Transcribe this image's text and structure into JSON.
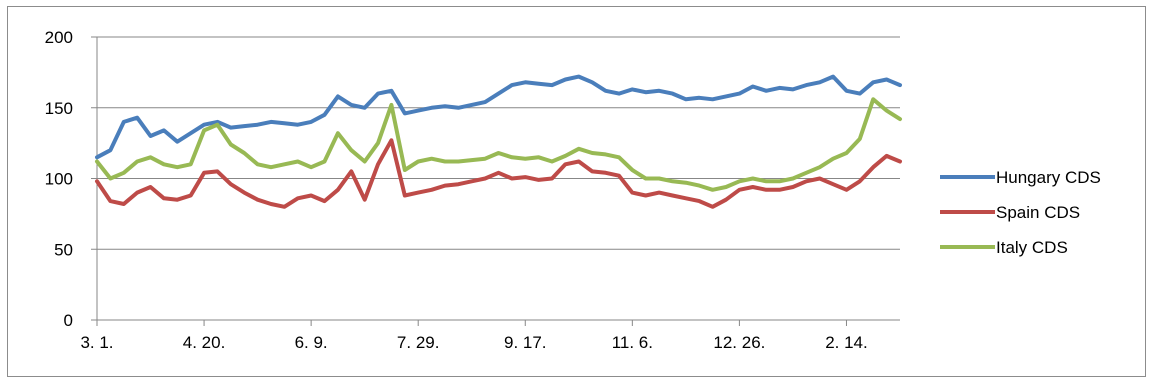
{
  "chart_data": {
    "type": "line",
    "title": "",
    "xlabel": "",
    "ylabel": "",
    "ylim": [
      0,
      200
    ],
    "yticks": [
      0,
      50,
      100,
      150,
      200
    ],
    "ytick_labels": [
      "0",
      "50",
      "100",
      "150",
      "200"
    ],
    "xtick_labels": [
      "3. 1.",
      "4. 20.",
      "6. 9.",
      "7. 29.",
      "9. 17.",
      "11. 6.",
      "12. 26.",
      "2. 14."
    ],
    "grid": "horizontal",
    "legend_position": "right",
    "x": [
      0,
      0.125,
      0.25,
      0.375,
      0.5,
      0.625,
      0.75,
      0.875,
      1,
      1.125,
      1.25,
      1.375,
      1.5,
      1.625,
      1.75,
      1.875,
      2,
      2.125,
      2.25,
      2.375,
      2.5,
      2.625,
      2.75,
      2.875,
      3,
      3.125,
      3.25,
      3.375,
      3.5,
      3.625,
      3.75,
      3.875,
      4,
      4.125,
      4.25,
      4.375,
      4.5,
      4.625,
      4.75,
      4.875,
      5,
      5.125,
      5.25,
      5.375,
      5.5,
      5.625,
      5.75,
      5.875,
      6,
      6.125,
      6.25,
      6.375,
      6.5,
      6.625,
      6.75,
      6.875,
      7,
      7.125,
      7.25,
      7.375,
      7.5
    ],
    "series": [
      {
        "name": "Hungary CDS",
        "color": "#4a7ebb",
        "values": [
          115,
          120,
          140,
          143,
          130,
          134,
          126,
          132,
          138,
          140,
          136,
          137,
          138,
          140,
          139,
          138,
          140,
          145,
          158,
          152,
          150,
          160,
          162,
          146,
          148,
          150,
          151,
          150,
          152,
          154,
          160,
          166,
          168,
          167,
          166,
          170,
          172,
          168,
          162,
          160,
          163,
          161,
          162,
          160,
          156,
          157,
          156,
          158,
          160,
          165,
          162,
          164,
          163,
          166,
          168,
          172,
          162,
          160,
          168,
          170,
          166
        ]
      },
      {
        "name": "Spain CDS",
        "color": "#be4b48",
        "values": [
          98,
          84,
          82,
          90,
          94,
          86,
          85,
          88,
          104,
          105,
          96,
          90,
          85,
          82,
          80,
          86,
          88,
          84,
          92,
          105,
          85,
          110,
          127,
          88,
          90,
          92,
          95,
          96,
          98,
          100,
          104,
          100,
          101,
          99,
          100,
          110,
          112,
          105,
          104,
          102,
          90,
          88,
          90,
          88,
          86,
          84,
          80,
          85,
          92,
          94,
          92,
          92,
          94,
          98,
          100,
          96,
          92,
          98,
          108,
          116,
          112
        ]
      },
      {
        "name": "Italy CDS",
        "color": "#98b954",
        "values": [
          112,
          100,
          104,
          112,
          115,
          110,
          108,
          110,
          134,
          138,
          124,
          118,
          110,
          108,
          110,
          112,
          108,
          112,
          132,
          120,
          112,
          125,
          152,
          106,
          112,
          114,
          112,
          112,
          113,
          114,
          118,
          115,
          114,
          115,
          112,
          116,
          121,
          118,
          117,
          115,
          106,
          100,
          100,
          98,
          97,
          95,
          92,
          94,
          98,
          100,
          98,
          98,
          100,
          104,
          108,
          114,
          118,
          128,
          156,
          148,
          142
        ]
      }
    ]
  }
}
